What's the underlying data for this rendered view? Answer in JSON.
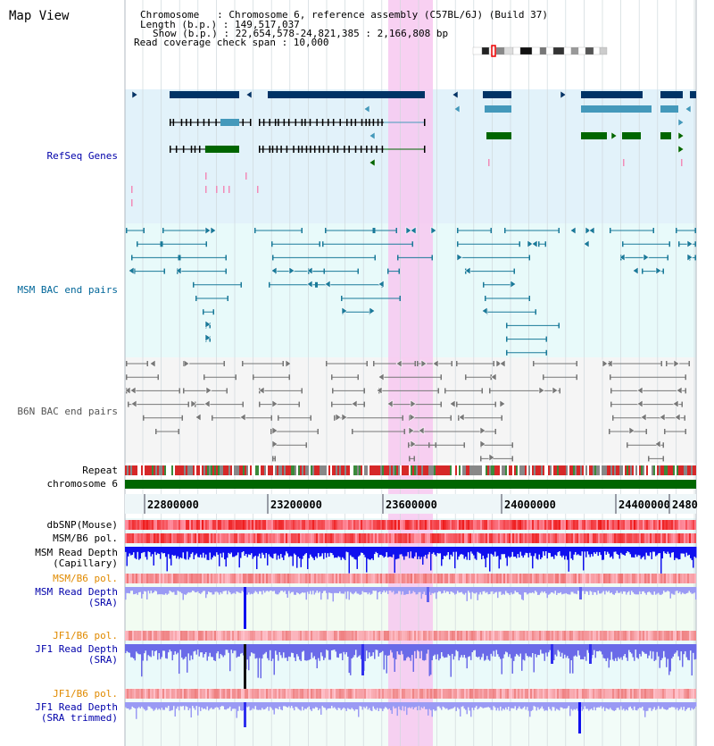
{
  "header": {
    "title": "Map View",
    "info_lines": [
      "Chromosome   : Chromosome 6, reference assembly (C57BL/6J) (Build 37)",
      "Length (b.p.) : 149,517,037",
      "Show (b.p.) : 22,654,578-24,821,385 : 2,166,808 bp",
      "Read coverage check span : 10,000"
    ]
  },
  "tracks": {
    "refseq": {
      "label": "RefSeq Genes",
      "color": "#0000aa"
    },
    "msm_bac": {
      "label": "MSM BAC end pairs",
      "color": "#006699"
    },
    "b6n_bac": {
      "label": "B6N BAC end pairs",
      "color": "#555555"
    },
    "repeat": {
      "label": "Repeat"
    },
    "chromosome": {
      "label": "chromosome 6"
    },
    "dbsnp": {
      "label": "dbSNP(Mouse)"
    },
    "msm_b6_pol": {
      "label": "MSM/B6 pol."
    },
    "msm_depth_cap": {
      "label": "MSM Read Depth\n(Capillary)"
    },
    "msm_b6_pol2": {
      "label": "MSM/B6 pol.",
      "color": "#e08a00"
    },
    "msm_depth_sra": {
      "label": "MSM Read Depth\n(SRA)",
      "color": "#0000aa"
    },
    "jf1_b6_pol": {
      "label": "JF1/B6 pol.",
      "color": "#e08a00"
    },
    "jf1_depth_sra": {
      "label": "JF1 Read Depth\n(SRA)",
      "color": "#0000aa"
    },
    "jf1_b6_pol2": {
      "label": "JF1/B6 pol.",
      "color": "#e08a00"
    },
    "jf1_depth_trim": {
      "label": "JF1 Read Depth\n(SRA trimmed)",
      "color": "#0000aa"
    }
  },
  "axis": {
    "ticks": [
      "22800000",
      "23200000",
      "23600000",
      "24000000",
      "24400000",
      "2480"
    ]
  },
  "colors": {
    "refseq_bg": "#e2f2fa",
    "msm_bg": "#e8fafa",
    "b6n_bg": "#f5f5f5",
    "highlight": "#f7c8f0",
    "gene_dark": "#003366",
    "gene_mid": "#4499bb",
    "gene_green": "#006600"
  }
}
